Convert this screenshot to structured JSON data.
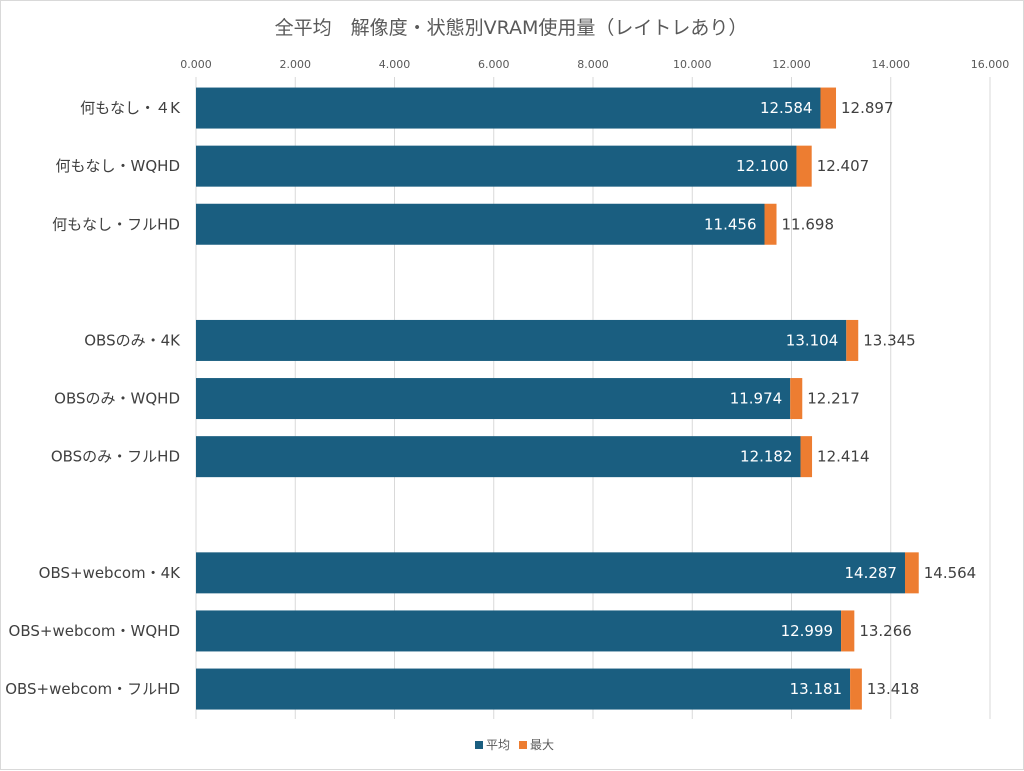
{
  "chart_data": {
    "type": "bar",
    "orientation": "horizontal",
    "title": "全平均　解像度・状態別VRAM使用量（レイトレあり）",
    "categories": [
      "何もなし・４K",
      "何もなし・WQHD",
      "何もなし・フルHD",
      "",
      "OBSのみ・4K",
      "OBSのみ・WQHD",
      "OBSのみ・フルHD",
      "",
      "OBS+webcom・4K",
      "OBS+webcom・WQHD",
      "OBS+webcom・フルHD"
    ],
    "series": [
      {
        "name": "平均",
        "color": "#1a5e80",
        "values": [
          12.584,
          12.1,
          11.456,
          null,
          13.104,
          11.974,
          12.182,
          null,
          14.287,
          12.999,
          13.181
        ],
        "labels": [
          "12.584",
          "12.100",
          "11.456",
          "",
          "13.104",
          "11.974",
          "12.182",
          "",
          "14.287",
          "12.999",
          "13.181"
        ]
      },
      {
        "name": "最大",
        "color": "#ed7d31",
        "values": [
          12.897,
          12.407,
          11.698,
          null,
          13.345,
          12.217,
          12.414,
          null,
          14.564,
          13.266,
          13.418
        ],
        "labels": [
          "12.897",
          "12.407",
          "11.698",
          "",
          "13.345",
          "12.217",
          "12.414",
          "",
          "14.564",
          "13.266",
          "13.418"
        ]
      }
    ],
    "xlim": [
      0,
      16
    ],
    "xticks": [
      0,
      2,
      4,
      6,
      8,
      10,
      12,
      14,
      16
    ],
    "xtick_labels": [
      "0.000",
      "2.000",
      "4.000",
      "6.000",
      "8.000",
      "10.000",
      "12.000",
      "14.000",
      "16.000"
    ],
    "axis_position": "top",
    "grid": true,
    "legend": "bottom",
    "xlabel": "",
    "ylabel": ""
  }
}
